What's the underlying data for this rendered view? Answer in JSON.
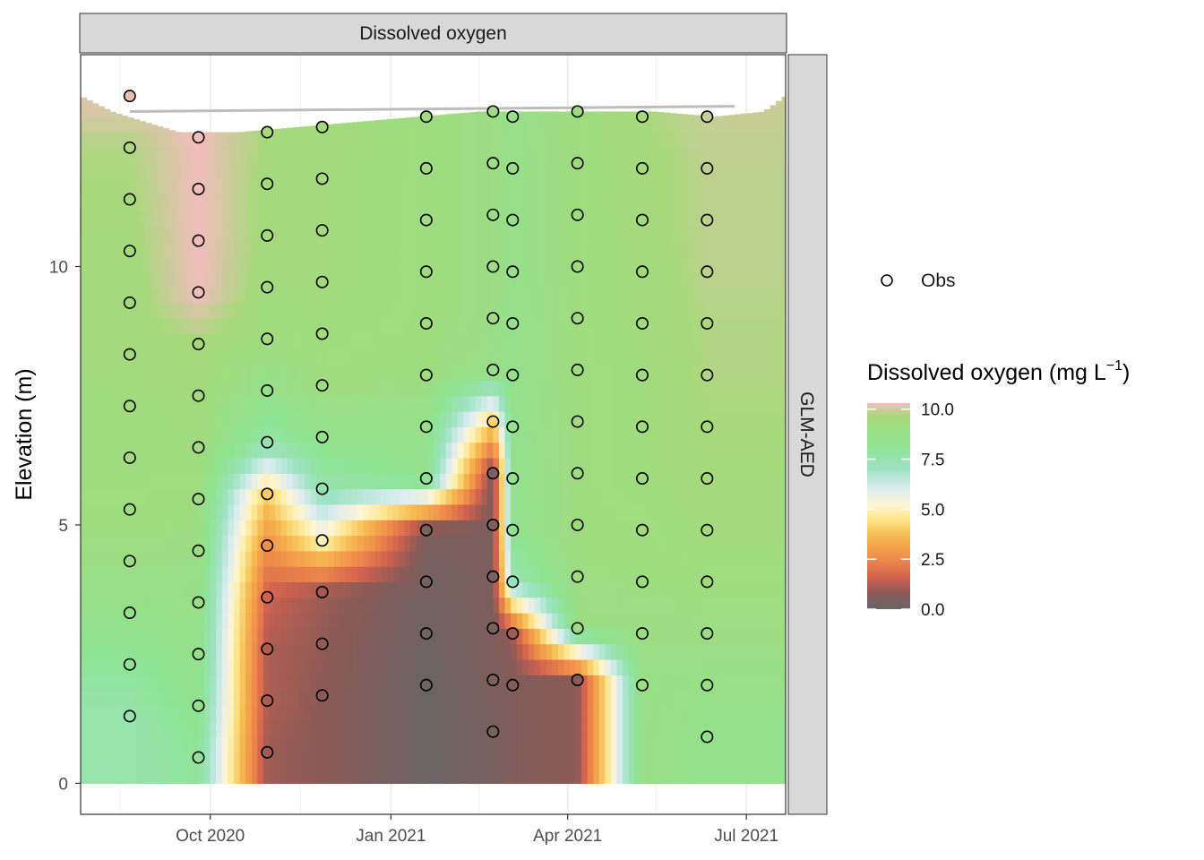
{
  "chart_data": {
    "type": "heatmap",
    "facet_top": "Dissolved oxygen",
    "facet_right": "GLM-AED",
    "ylabel": "Elevation (m)",
    "xlabel": "",
    "x_ticks": [
      "Oct 2020",
      "Jan 2021",
      "Apr 2021",
      "Jul 2021"
    ],
    "y_ticks": [
      "0",
      "5",
      "10"
    ],
    "ylim": [
      -0.6,
      14.1
    ],
    "xlim": [
      "2020-07-27",
      "2021-07-21"
    ],
    "grid": true,
    "legend": {
      "position": "right",
      "points_label": "Obs",
      "colorbar_title": "Dissolved oxygen (mg L",
      "colorbar_superscript": "−1",
      "colorbar_title_end": ")",
      "colorbar_ticks": [
        "10.0",
        "7.5",
        "5.0",
        "2.5",
        "0.0"
      ],
      "colorbar_range": [
        0,
        10.3
      ]
    },
    "color_scale": [
      {
        "v": 0.0,
        "c": "#666666"
      },
      {
        "v": 0.8,
        "c": "#8a5a56"
      },
      {
        "v": 1.6,
        "c": "#d0614f"
      },
      {
        "v": 2.5,
        "c": "#f08a4a"
      },
      {
        "v": 3.6,
        "c": "#f6b84e"
      },
      {
        "v": 4.5,
        "c": "#fde58c"
      },
      {
        "v": 5.2,
        "c": "#fff6d2"
      },
      {
        "v": 6.0,
        "c": "#dcecf2"
      },
      {
        "v": 7.0,
        "c": "#9ee3c3"
      },
      {
        "v": 8.2,
        "c": "#8ee391"
      },
      {
        "v": 9.6,
        "c": "#a6d97a"
      },
      {
        "v": 10.3,
        "c": "#f3bdbd"
      }
    ],
    "surface": [
      [
        "2020-07-27",
        13.3
      ],
      [
        "2020-08-12",
        13.0
      ],
      [
        "2020-08-20",
        12.9
      ],
      [
        "2020-09-15",
        12.6
      ],
      [
        "2020-10-15",
        12.6
      ],
      [
        "2020-11-15",
        12.7
      ],
      [
        "2020-12-15",
        12.8
      ],
      [
        "2021-01-15",
        12.9
      ],
      [
        "2021-02-15",
        13.0
      ],
      [
        "2021-03-15",
        13.0
      ],
      [
        "2021-04-15",
        13.0
      ],
      [
        "2021-05-15",
        13.0
      ],
      [
        "2021-06-15",
        12.9
      ],
      [
        "2021-07-10",
        13.0
      ],
      [
        "2021-07-21",
        13.3
      ]
    ],
    "observed_surface_line": [
      [
        "2020-08-21",
        13.0
      ],
      [
        "2021-06-25",
        13.1
      ]
    ],
    "obs_profiles": [
      {
        "date": "2020-08-21",
        "elev": [
          13.3,
          12.3,
          11.3,
          10.3,
          9.3,
          8.3,
          7.3,
          6.3,
          5.3,
          4.3,
          3.3,
          2.3,
          1.3
        ],
        "do": [
          10.2,
          9.7,
          9.6,
          9.5,
          9.4,
          9.4,
          9.3,
          9.3,
          9.2,
          9.0,
          8.6,
          8.0,
          7.5
        ]
      },
      {
        "date": "2020-09-25",
        "elev": [
          12.5,
          11.5,
          10.5,
          9.5,
          8.5,
          7.5,
          6.5,
          5.5,
          4.5,
          3.5,
          2.5,
          1.5,
          0.5
        ],
        "do": [
          10.3,
          10.3,
          10.3,
          10.3,
          9.6,
          9.4,
          9.3,
          9.2,
          9.0,
          8.8,
          8.6,
          8.4,
          8.0
        ]
      },
      {
        "date": "2020-10-30",
        "elev": [
          12.6,
          11.6,
          10.6,
          9.6,
          8.6,
          7.6,
          6.6,
          5.6,
          4.6,
          3.6,
          2.6,
          1.6,
          0.6
        ],
        "do": [
          9.6,
          9.5,
          9.5,
          9.4,
          9.2,
          8.6,
          7.6,
          4.0,
          2.6,
          1.6,
          1.2,
          1.2,
          1.0
        ]
      },
      {
        "date": "2020-11-27",
        "elev": [
          12.7,
          11.7,
          10.7,
          9.7,
          8.7,
          7.7,
          6.7,
          5.7,
          4.7,
          3.7,
          2.7,
          1.7
        ],
        "do": [
          9.5,
          9.4,
          9.4,
          9.4,
          9.3,
          9.2,
          8.5,
          7.5,
          5.0,
          1.0,
          0.9,
          0.8
        ]
      },
      {
        "date": "2021-01-19",
        "elev": [
          12.9,
          11.9,
          10.9,
          9.9,
          8.9,
          7.9,
          6.9,
          5.9,
          4.9,
          3.9,
          2.9,
          1.9
        ],
        "do": [
          9.2,
          9.2,
          9.2,
          9.2,
          9.2,
          9.1,
          8.7,
          8.4,
          0.5,
          0.3,
          0.2,
          0.1
        ]
      },
      {
        "date": "2021-02-22",
        "elev": [
          13.0,
          12.0,
          11.0,
          10.0,
          9.0,
          8.0,
          7.0,
          6.0,
          5.0,
          4.0,
          3.0,
          2.0,
          1.0
        ],
        "do": [
          9.0,
          9.0,
          9.0,
          9.0,
          9.0,
          8.8,
          4.2,
          0.5,
          0.5,
          0.5,
          0.5,
          0.5,
          0.4
        ]
      },
      {
        "date": "2021-03-04",
        "elev": [
          12.9,
          11.9,
          10.9,
          9.9,
          8.9,
          7.9,
          6.9,
          5.9,
          4.9,
          3.9,
          2.9,
          1.9
        ],
        "do": [
          8.8,
          8.7,
          8.7,
          8.7,
          8.6,
          8.6,
          8.5,
          8.4,
          8.4,
          7.2,
          1.0,
          0.6
        ]
      },
      {
        "date": "2021-04-06",
        "elev": [
          13.0,
          12.0,
          11.0,
          10.0,
          9.0,
          8.0,
          7.0,
          6.0,
          5.0,
          4.0,
          3.0,
          2.0
        ],
        "do": [
          9.2,
          9.2,
          9.2,
          9.2,
          9.2,
          9.2,
          9.2,
          9.2,
          9.2,
          9.1,
          9.0,
          0.8
        ]
      },
      {
        "date": "2021-05-09",
        "elev": [
          12.9,
          11.9,
          10.9,
          9.9,
          8.9,
          7.9,
          6.9,
          5.9,
          4.9,
          3.9,
          2.9,
          1.9
        ],
        "do": [
          9.6,
          9.5,
          9.5,
          9.4,
          9.4,
          9.3,
          9.3,
          9.3,
          9.2,
          9.1,
          9.0,
          8.9
        ]
      },
      {
        "date": "2021-06-11",
        "elev": [
          12.9,
          11.9,
          10.9,
          9.9,
          8.9,
          7.9,
          6.9,
          5.9,
          4.9,
          3.9,
          2.9,
          1.9,
          0.9
        ],
        "do": [
          9.9,
          9.8,
          9.8,
          9.8,
          9.7,
          9.7,
          9.6,
          9.5,
          9.4,
          9.2,
          9.0,
          8.8,
          8.5
        ]
      }
    ]
  }
}
